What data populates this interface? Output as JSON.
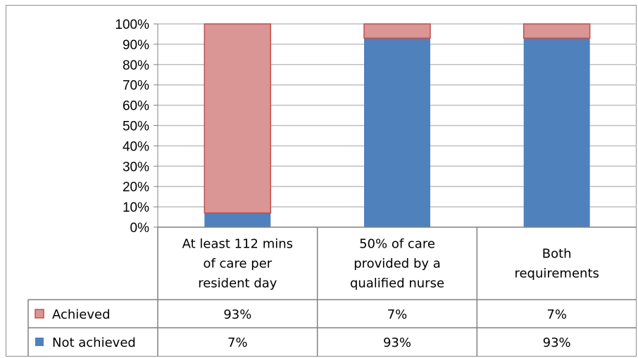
{
  "chart_data": {
    "type": "bar",
    "stacked": true,
    "percent_stacked": true,
    "categories": [
      [
        "At least 112 mins",
        "of care per",
        "resident day"
      ],
      [
        "50% of care",
        "provided by a",
        "qualified nurse"
      ],
      [
        "Both",
        "requirements"
      ]
    ],
    "series": [
      {
        "name": "Not achieved",
        "values": [
          7,
          93,
          93
        ],
        "labels": [
          "7%",
          "93%",
          "93%"
        ],
        "color": "#4f81bd"
      },
      {
        "name": "Achieved",
        "values": [
          93,
          7,
          7
        ],
        "labels": [
          "93%",
          "7%",
          "7%"
        ],
        "color": "#d99694",
        "border": "#c0504d"
      }
    ],
    "ylim": [
      0,
      100
    ],
    "yticks": [
      "0%",
      "10%",
      "20%",
      "30%",
      "40%",
      "50%",
      "60%",
      "70%",
      "80%",
      "90%",
      "100%"
    ],
    "grid": true,
    "legend": "data-table",
    "title": "",
    "xlabel": "",
    "ylabel": ""
  }
}
